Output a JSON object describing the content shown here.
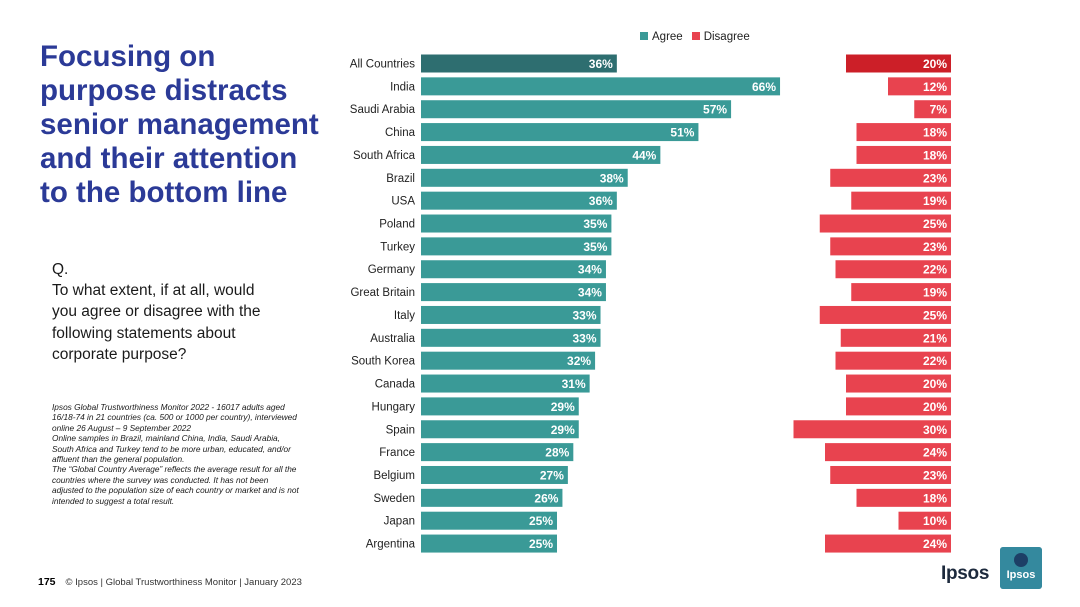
{
  "title": "Focusing on purpose distracts senior management and their attention to the bottom line",
  "question": {
    "label": "Q.",
    "lines": [
      "To what extent, if at all, would",
      "you agree or disagree with the",
      "following statements about",
      "corporate purpose?"
    ]
  },
  "footnote_lines": [
    "Ipsos Global Trustworthiness Monitor 2022 - 16017 adults aged",
    "16/18-74 in 21 countries (ca. 500 or 1000 per country), interviewed",
    "online 26 August – 9 September 2022",
    "Online samples in Brazil, mainland China, India, Saudi Arabia,",
    "South Africa and Turkey tend to be more urban, educated, and/or",
    "affluent than the general population.",
    "The “Global Country Average” reflects the average result for all the",
    "countries where the survey was conducted. It has not been",
    "adjusted to the population size of each country or market and is not",
    "intended to suggest a total result."
  ],
  "footer": {
    "page_number": "175",
    "text": "© Ipsos | Global Trustworthiness Monitor | January 2023"
  },
  "logo": {
    "wordmark": "Ipsos",
    "mark_text": "Ipsos"
  },
  "colors": {
    "agree": "#3a9a97",
    "agree_highlight": "#2e6e70",
    "disagree": "#e8434f",
    "disagree_highlight": "#cc1f28",
    "title": "#2b3a97"
  },
  "chart_data": {
    "type": "bar",
    "orientation": "horizontal",
    "legend": [
      "Agree",
      "Disagree"
    ],
    "categories": [
      "All Countries",
      "India",
      "Saudi Arabia",
      "China",
      "South Africa",
      "Brazil",
      "USA",
      "Poland",
      "Turkey",
      "Germany",
      "Great Britain",
      "Italy",
      "Australia",
      "South Korea",
      "Canada",
      "Hungary",
      "Spain",
      "France",
      "Belgium",
      "Sweden",
      "Japan",
      "Argentina"
    ],
    "series": [
      {
        "name": "Agree",
        "values": [
          36,
          66,
          57,
          51,
          44,
          38,
          36,
          35,
          35,
          34,
          34,
          33,
          33,
          32,
          31,
          29,
          29,
          28,
          27,
          26,
          25,
          25
        ]
      },
      {
        "name": "Disagree",
        "values": [
          20,
          12,
          7,
          18,
          18,
          23,
          19,
          25,
          23,
          22,
          19,
          25,
          21,
          22,
          20,
          20,
          30,
          24,
          23,
          18,
          10,
          24
        ]
      }
    ],
    "value_suffix": "%",
    "highlight_category": "All Countries"
  }
}
